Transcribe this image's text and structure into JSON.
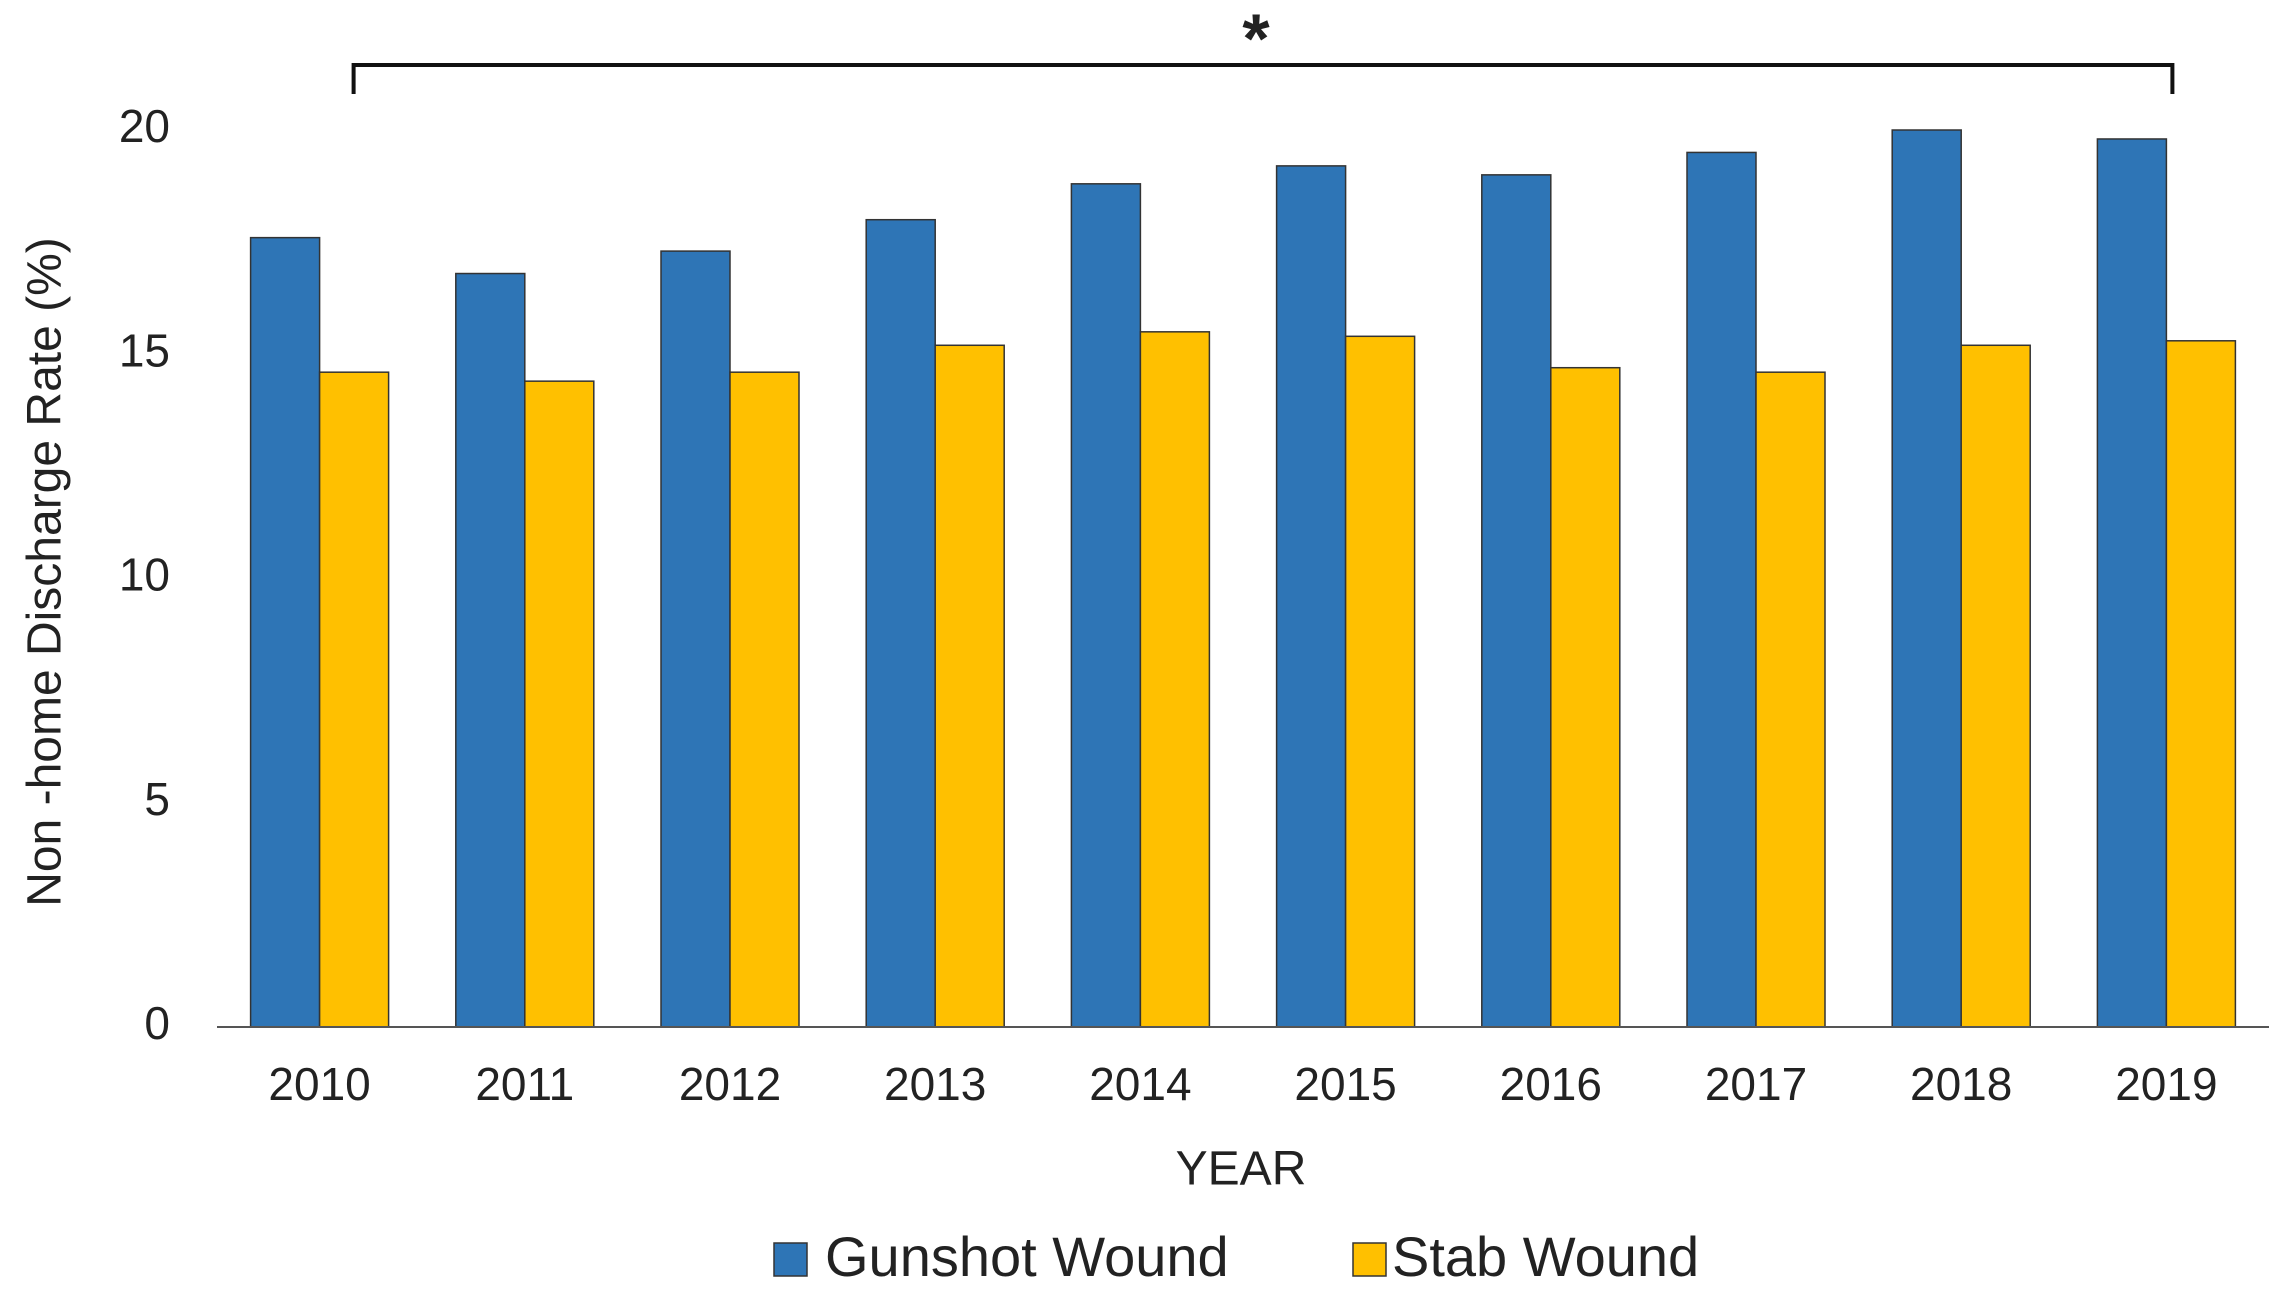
{
  "chart_data": {
    "type": "bar",
    "y_label": "Non -home Discharge Rate (%)",
    "x_label": "YEAR",
    "annotation": "*",
    "categories": [
      "2010",
      "2011",
      "2012",
      "2013",
      "2014",
      "2015",
      "2016",
      "2017",
      "2018",
      "2019"
    ],
    "series": [
      {
        "name": "Gunshot Wound",
        "color": "#2e75b6",
        "values": [
          17.6,
          16.8,
          17.3,
          18.0,
          18.8,
          19.2,
          19.0,
          19.5,
          20.0,
          19.8
        ]
      },
      {
        "name": "Stab Wound",
        "color": "#ffc000",
        "values": [
          14.6,
          14.4,
          14.6,
          15.2,
          15.5,
          15.4,
          14.7,
          14.6,
          15.2,
          15.3
        ]
      }
    ],
    "ylim": [
      0,
      20
    ],
    "yticks": [
      0,
      5,
      10,
      15,
      20
    ],
    "grid": false,
    "legend": "bottom"
  }
}
